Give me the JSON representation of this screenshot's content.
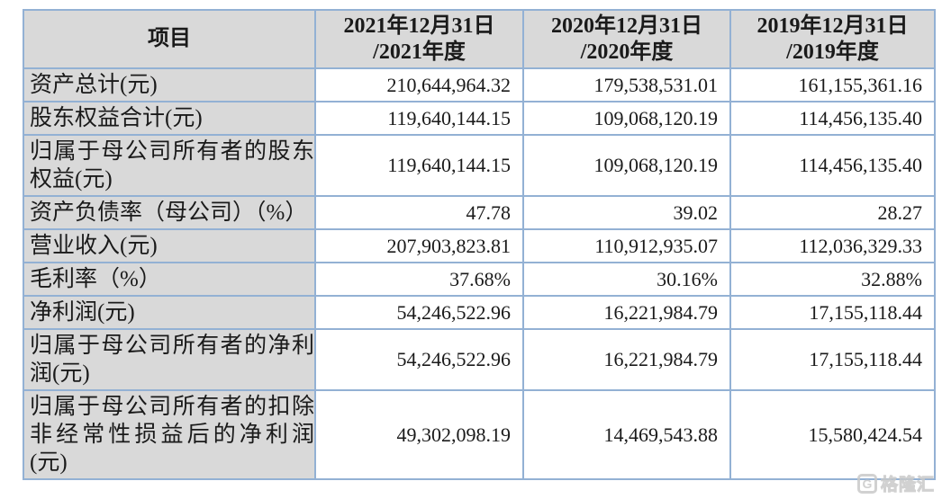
{
  "colors": {
    "border": "#93b1d4",
    "cell_gray": "#d9d9d9",
    "watermark": "#c9c9c9"
  },
  "table": {
    "header": {
      "item": "项目",
      "periods": [
        {
          "date": "2021年12月31日",
          "period": "/2021年度"
        },
        {
          "date": "2020年12月31日",
          "period": "/2020年度"
        },
        {
          "date": "2019年12月31日",
          "period": "/2019年度"
        }
      ]
    },
    "rows": [
      {
        "label": "资产总计(元)",
        "values": [
          "210,644,964.32",
          "179,538,531.01",
          "161,155,361.16"
        ]
      },
      {
        "label": "股东权益合计(元)",
        "values": [
          "119,640,144.15",
          "109,068,120.19",
          "114,456,135.40"
        ]
      },
      {
        "label": "归属于母公司所有者的股东权益(元)",
        "values": [
          "119,640,144.15",
          "109,068,120.19",
          "114,456,135.40"
        ]
      },
      {
        "label": "资产负债率（母公司）（%）",
        "values": [
          "47.78",
          "39.02",
          "28.27"
        ]
      },
      {
        "label": "营业收入(元)",
        "values": [
          "207,903,823.81",
          "110,912,935.07",
          "112,036,329.33"
        ]
      },
      {
        "label": "毛利率（%）",
        "values": [
          "37.68%",
          "30.16%",
          "32.88%"
        ]
      },
      {
        "label": "净利润(元)",
        "values": [
          "54,246,522.96",
          "16,221,984.79",
          "17,155,118.44"
        ]
      },
      {
        "label": "归属于母公司所有者的净利润(元)",
        "values": [
          "54,246,522.96",
          "16,221,984.79",
          "17,155,118.44"
        ]
      },
      {
        "label": "归属于母公司所有者的扣除非经常性损益后的净利润(元)",
        "values": [
          "49,302,098.19",
          "14,469,543.88",
          "15,580,424.54"
        ]
      }
    ]
  },
  "watermark": {
    "icon": "G",
    "text": "格隆汇"
  }
}
